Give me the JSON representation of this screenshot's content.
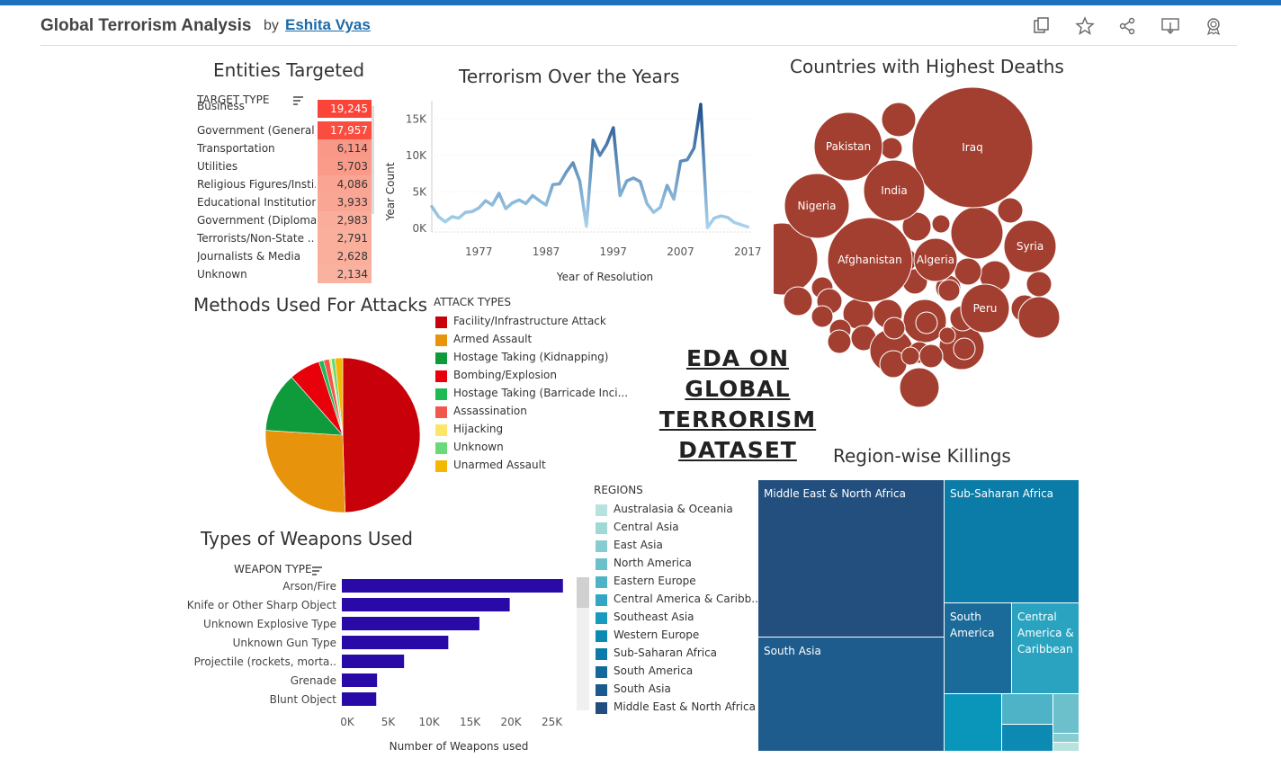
{
  "header": {
    "title": "Global Terrorism Analysis",
    "by": "by",
    "author": "Eshita Vyas",
    "icons": [
      "copy-icon",
      "star-icon",
      "share-icon",
      "download-icon",
      "badge-icon"
    ]
  },
  "entities": {
    "title": "Entities Targeted",
    "column_header": "TARGET TYPE",
    "rows": [
      {
        "label": "Business",
        "value": "19,245"
      },
      {
        "label": "Government (General)",
        "value": "17,957"
      },
      {
        "label": "Transportation",
        "value": "6,114"
      },
      {
        "label": "Utilities",
        "value": "5,703"
      },
      {
        "label": "Religious Figures/Insti..",
        "value": "4,086"
      },
      {
        "label": "Educational Institution",
        "value": "3,933"
      },
      {
        "label": "Government (Diploma..",
        "value": "2,983"
      },
      {
        "label": "Terrorists/Non-State ..",
        "value": "2,791"
      },
      {
        "label": "Journalists & Media",
        "value": "2,628"
      },
      {
        "label": "Unknown",
        "value": "2,134"
      }
    ]
  },
  "methods": {
    "title": "Methods Used For Attacks",
    "legend_title": "ATTACK TYPES",
    "legend": [
      {
        "label": "Facility/Infrastructure Attack",
        "color": "#c8000a"
      },
      {
        "label": "Armed Assault",
        "color": "#e8930c"
      },
      {
        "label": "Hostage Taking (Kidnapping)",
        "color": "#0f9a3c"
      },
      {
        "label": "Bombing/Explosion",
        "color": "#e8000a"
      },
      {
        "label": "Hostage Taking (Barricade Inci...",
        "color": "#1db954"
      },
      {
        "label": "Assassination",
        "color": "#f0584c"
      },
      {
        "label": "Hijacking",
        "color": "#fde56a"
      },
      {
        "label": "Unknown",
        "color": "#6ad97a"
      },
      {
        "label": "Unarmed Assault",
        "color": "#f5b800"
      }
    ]
  },
  "eda": {
    "line1": "EDA ON GLOBAL",
    "line2": "TERRORISM",
    "line3": "DATASET"
  },
  "weapons_legend": {
    "title": "REGIONS",
    "items": [
      {
        "label": "Australasia & Oceania",
        "color": "#b6e3dd"
      },
      {
        "label": "Central Asia",
        "color": "#9fd8d4"
      },
      {
        "label": "East Asia",
        "color": "#86ccd0"
      },
      {
        "label": "North America",
        "color": "#6cc0cc"
      },
      {
        "label": "Eastern Europe",
        "color": "#4fb3c8"
      },
      {
        "label": "Central America & Caribb...",
        "color": "#32a6c3"
      },
      {
        "label": "Southeast Asia",
        "color": "#1999bd"
      },
      {
        "label": "Western Europe",
        "color": "#0d8ab4"
      },
      {
        "label": "Sub-Saharan Africa",
        "color": "#0b7aa8"
      },
      {
        "label": "South America",
        "color": "#13699a"
      },
      {
        "label": "South Asia",
        "color": "#1a5a8c"
      },
      {
        "label": "Middle East & North Africa",
        "color": "#224d80"
      }
    ]
  },
  "treemap": {
    "title": "Region-wise Killings",
    "cells": [
      {
        "label": "Middle East & North Africa",
        "color": "#234f7e"
      },
      {
        "label": "Sub-Saharan Africa",
        "color": "#0b7ba8"
      },
      {
        "label": "South Asia",
        "color": "#1e5c8d"
      },
      {
        "label": "South America",
        "color": "#1a6a9a"
      },
      {
        "label": "Central America & Caribbean",
        "color": "#2aa3c0"
      }
    ]
  },
  "chart_data": [
    {
      "type": "line",
      "title": "Terrorism Over the Years",
      "xlabel": "Year of Resolution",
      "ylabel": "Year Count",
      "x_ticks": [
        "1977",
        "1987",
        "1997",
        "2007",
        "2017"
      ],
      "y_ticks": [
        "0K",
        "5K",
        "10K",
        "15K"
      ],
      "ylim": [
        0,
        17500
      ],
      "x": [
        1970,
        1971,
        1972,
        1973,
        1974,
        1975,
        1976,
        1977,
        1978,
        1979,
        1980,
        1981,
        1982,
        1983,
        1984,
        1985,
        1986,
        1987,
        1988,
        1989,
        1990,
        1991,
        1992,
        1993,
        1994,
        1995,
        1996,
        1997,
        1998,
        1999,
        2000,
        2001,
        2002,
        2003,
        2004,
        2005,
        2006,
        2007,
        2008,
        2009,
        2010,
        2011,
        2012,
        2013,
        2014,
        2015,
        2016,
        2017
      ],
      "values": [
        3000,
        1600,
        900,
        1600,
        1400,
        2200,
        2300,
        2800,
        3800,
        3200,
        4800,
        2700,
        3500,
        3900,
        3400,
        4500,
        3800,
        3200,
        6000,
        6100,
        7700,
        9000,
        6500,
        300,
        12100,
        10000,
        11500,
        13800,
        4500,
        6500,
        6900,
        6400,
        3400,
        2200,
        2900,
        5900,
        4000,
        9200,
        9400,
        11000,
        17000,
        100,
        1400,
        1700,
        1500,
        800,
        500,
        200
      ]
    },
    {
      "type": "pie",
      "title": "Methods Used For Attacks",
      "categories": [
        "Facility/Infrastructure Attack",
        "Armed Assault",
        "Hostage Taking (Kidnapping)",
        "Bombing/Explosion",
        "Hostage Taking (Barricade Inci...",
        "Assassination",
        "Hijacking",
        "Unknown",
        "Unarmed Assault"
      ],
      "values": [
        49.5,
        26.5,
        12.5,
        6.5,
        1.0,
        1.2,
        0.4,
        0.8,
        1.6
      ]
    },
    {
      "type": "bar",
      "title": "Types of Weapons Used",
      "axis_header": "WEAPON TYPE",
      "xlabel": "Number of Weapons used",
      "x_ticks": [
        "0K",
        "5K",
        "10K",
        "15K",
        "20K",
        "25K"
      ],
      "xlim": [
        0,
        29000
      ],
      "categories": [
        "Arson/Fire",
        "Knife or Other Sharp Object",
        "Unknown Explosive Type",
        "Unknown Gun Type",
        "Projectile (rockets, morta..",
        "Grenade",
        "Blunt Object"
      ],
      "values": [
        27000,
        20500,
        16800,
        13000,
        7600,
        4300,
        4200
      ]
    },
    {
      "type": "bubble",
      "title": "Countries with Highest Deaths",
      "labels": [
        "Iraq",
        "Afghanistan",
        "Pakistan",
        "India",
        "Nigeria",
        "Syria",
        "Algeria",
        "Peru"
      ],
      "values": [
        78000,
        39000,
        23000,
        19000,
        22000,
        15000,
        11000,
        12000
      ]
    },
    {
      "type": "treemap",
      "title": "Region-wise Killings",
      "categories": [
        "Middle East & North Africa",
        "South Asia",
        "Sub-Saharan Africa",
        "South America",
        "Central America & Caribbean"
      ],
      "values": [
        137000,
        101000,
        78000,
        28000,
        28000
      ]
    }
  ]
}
